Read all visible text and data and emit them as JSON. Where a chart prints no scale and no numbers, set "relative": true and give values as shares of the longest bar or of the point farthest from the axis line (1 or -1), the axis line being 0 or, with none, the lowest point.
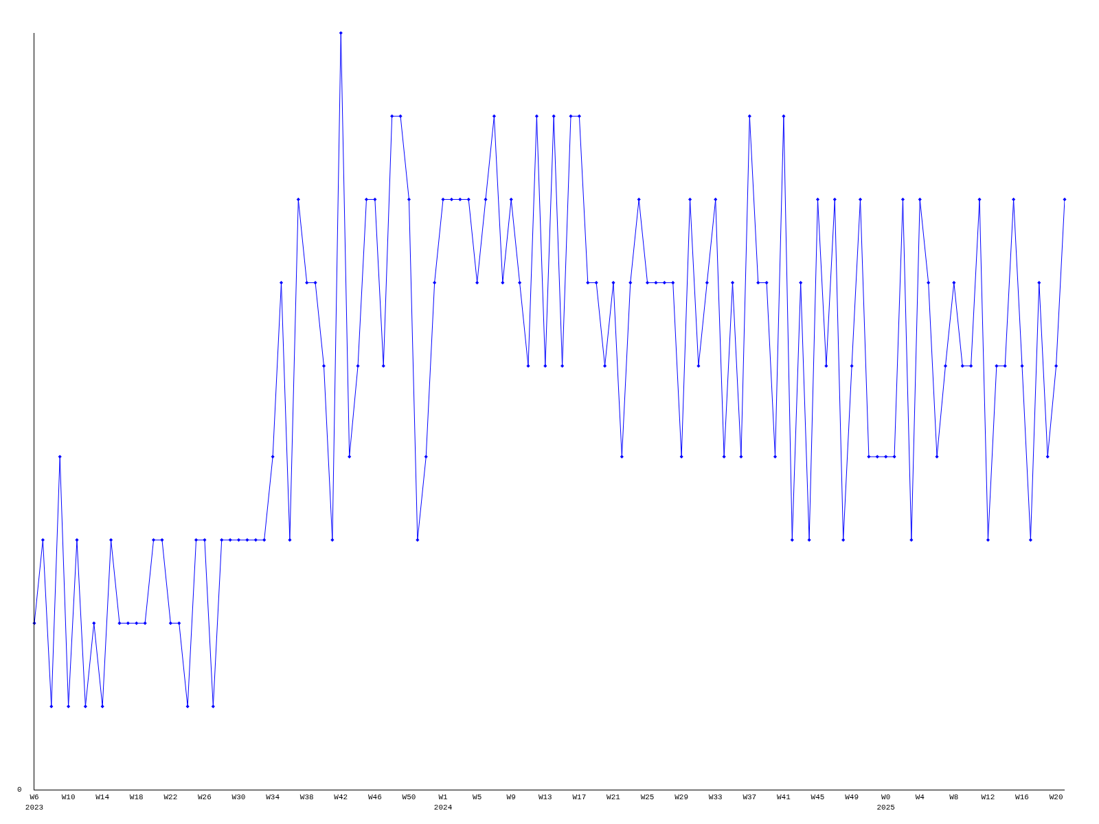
{
  "chart_data": {
    "type": "line",
    "relative": true,
    "color": "#0000ff",
    "marker": "diamond",
    "legend": false,
    "annotations": [
      "0"
    ],
    "categories": [
      "W6\n2023",
      null,
      null,
      null,
      "W10",
      null,
      null,
      null,
      "W14",
      null,
      null,
      null,
      "W18",
      null,
      null,
      null,
      "W22",
      null,
      null,
      null,
      "W26",
      null,
      null,
      null,
      "W30",
      null,
      null,
      null,
      "W34",
      null,
      null,
      null,
      "W38",
      null,
      null,
      null,
      "W42",
      null,
      null,
      null,
      "W46",
      null,
      null,
      null,
      "W50",
      null,
      null,
      null,
      "W1\n2024",
      null,
      null,
      null,
      "W5",
      null,
      null,
      null,
      "W9",
      null,
      null,
      null,
      "W13",
      null,
      null,
      null,
      "W17",
      null,
      null,
      null,
      "W21",
      null,
      null,
      null,
      "W25",
      null,
      null,
      null,
      "W29",
      null,
      null,
      null,
      "W33",
      null,
      null,
      null,
      "W37",
      null,
      null,
      null,
      "W41",
      null,
      null,
      null,
      "W45",
      null,
      null,
      null,
      "W49",
      null,
      null,
      null,
      "W0\n2025",
      null,
      null,
      null,
      "W4",
      null,
      null,
      null,
      "W8",
      null,
      null,
      null,
      "W12",
      null,
      null,
      null,
      "W16",
      null,
      null,
      null,
      "W20",
      null
    ],
    "values": [
      0.22,
      0.33,
      0.11,
      0.44,
      0.11,
      0.33,
      0.11,
      0.22,
      0.11,
      0.33,
      0.22,
      0.22,
      0.22,
      0.22,
      0.33,
      0.33,
      0.22,
      0.22,
      0.11,
      0.33,
      0.33,
      0.11,
      0.33,
      0.33,
      0.33,
      0.33,
      0.33,
      0.33,
      0.44,
      0.67,
      0.33,
      0.78,
      0.67,
      0.67,
      0.56,
      0.33,
      1,
      0.44,
      0.56,
      0.78,
      0.78,
      0.56,
      0.89,
      0.89,
      0.78,
      0.33,
      0.44,
      0.67,
      0.78,
      0.78,
      0.78,
      0.78,
      0.67,
      0.78,
      0.89,
      0.67,
      0.78,
      0.67,
      0.56,
      0.89,
      0.56,
      0.89,
      0.56,
      0.89,
      0.89,
      0.67,
      0.67,
      0.56,
      0.67,
      0.44,
      0.67,
      0.78,
      0.67,
      0.67,
      0.67,
      0.67,
      0.44,
      0.78,
      0.56,
      0.67,
      0.78,
      0.44,
      0.67,
      0.44,
      0.89,
      0.67,
      0.67,
      0.44,
      0.89,
      0.33,
      0.67,
      0.33,
      0.78,
      0.56,
      0.78,
      0.33,
      0.56,
      0.78,
      0.44,
      0.44,
      0.44,
      0.44,
      0.78,
      0.33,
      0.78,
      0.67,
      0.44,
      0.56,
      0.67,
      0.56,
      0.56,
      0.78,
      0.33,
      0.56,
      0.56,
      0.78,
      0.56,
      0.33,
      0.67,
      0.44,
      0.56,
      0.78
    ]
  }
}
